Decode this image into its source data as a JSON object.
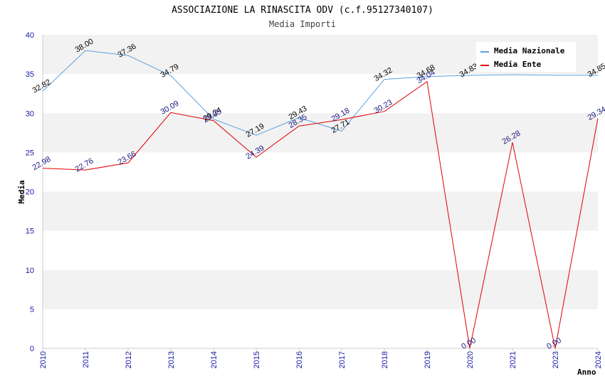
{
  "chart_data": {
    "type": "line",
    "title": "ASSOCIAZIONE LA RINASCITA ODV (c.f.95127340107)",
    "subtitle": "Media Importi",
    "xlabel": "Anno",
    "ylabel": "Media",
    "ylim": [
      0,
      40
    ],
    "yticks": [
      "0",
      "5",
      "10",
      "15",
      "20",
      "25",
      "30",
      "35",
      "40"
    ],
    "categories": [
      "2010",
      "2011",
      "2012",
      "2013",
      "2014",
      "2015",
      "2016",
      "2017",
      "2018",
      "2019",
      "2020",
      "2021",
      "2023",
      "2024"
    ],
    "grid": true,
    "legend_position": "top-right",
    "series": [
      {
        "name": "Media Nazionale",
        "color": "#5aa0e0",
        "values": [
          32.82,
          38.0,
          37.36,
          34.79,
          29.24,
          27.19,
          29.43,
          27.71,
          34.32,
          34.68,
          34.83,
          34.92,
          34.85,
          34.85
        ],
        "labels": [
          "32.82",
          "38.00",
          "37.36",
          "34.79",
          "29.24",
          "27.19",
          "29.43",
          "27.71",
          "34.32",
          "34.68",
          "34.83",
          "",
          "",
          "34.85"
        ]
      },
      {
        "name": "Media Ente",
        "color": "#e00000",
        "values": [
          22.98,
          22.76,
          23.66,
          30.09,
          29.05,
          24.39,
          28.35,
          29.18,
          30.23,
          34.04,
          0.0,
          26.28,
          0.0,
          29.34
        ],
        "labels": [
          "22.98",
          "22.76",
          "23.66",
          "30.09",
          "29.05",
          "24.39",
          "28.35",
          "29.18",
          "30.23",
          "34.04",
          "0.00",
          "26.28",
          "0.00",
          "29.34"
        ]
      }
    ]
  }
}
